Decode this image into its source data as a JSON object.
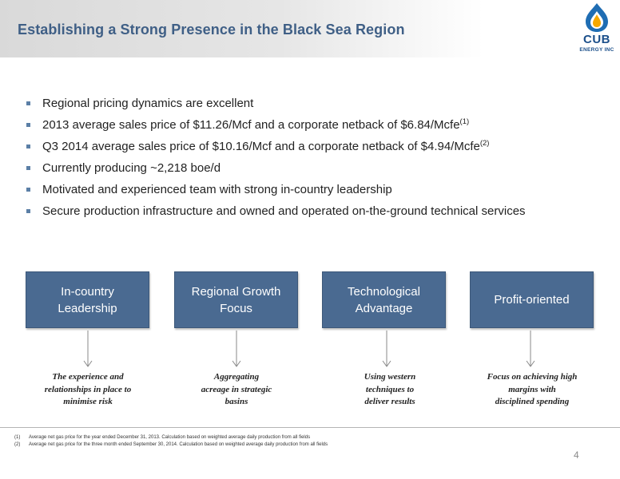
{
  "slide": {
    "title": "Establishing a Strong Presence in the Black Sea Region",
    "page_number": "4"
  },
  "logo": {
    "name": "CUB",
    "subtitle": "ENERGY INC",
    "colors": {
      "primary": "#1b4f8a",
      "flame": "#f5a800",
      "drop": "#1f6db3"
    }
  },
  "bullets": [
    {
      "text": "Regional pricing dynamics are excellent",
      "sup": ""
    },
    {
      "text": "2013 average sales price of $11.26/Mcf and a corporate netback of $6.84/Mcfe",
      "sup": "(1)"
    },
    {
      "text": "Q3 2014 average sales price of $10.16/Mcf and a corporate netback of $4.94/Mcfe",
      "sup": "(2)"
    },
    {
      "text": "Currently producing ~2,218 boe/d",
      "sup": ""
    },
    {
      "text": "Motivated and experienced team with strong in-country leadership",
      "sup": ""
    },
    {
      "text": "Secure production infrastructure and owned and operated on-the-ground technical services",
      "sup": ""
    }
  ],
  "pillars": [
    {
      "box_line1": "In-country",
      "box_line2": "Leadership",
      "caption_lines": [
        "The experience and",
        "relationships in place to",
        "minimise risk"
      ]
    },
    {
      "box_line1": "Regional Growth",
      "box_line2": "Focus",
      "caption_lines": [
        "Aggregating",
        "acreage in strategic",
        "basins"
      ]
    },
    {
      "box_line1": "Technological",
      "box_line2": "Advantage",
      "caption_lines": [
        "Using western",
        "techniques to",
        "deliver results"
      ]
    },
    {
      "box_line1": "Profit-oriented",
      "box_line2": "",
      "caption_lines": [
        "Focus on achieving high",
        "margins with",
        "disciplined spending"
      ]
    }
  ],
  "footnotes": [
    {
      "num": "(1)",
      "text": "Average net gas price for the year ended December 31, 2013. Calculation based on weighted average daily production from all fields"
    },
    {
      "num": "(2)",
      "text": "Average net gas price for the three month ended September 30, 2014. Calculation based on weighted average daily production from all fields"
    }
  ],
  "colors": {
    "title": "#3f5f86",
    "box_fill": "#4a6a91",
    "bullet_marker": "#5b7fa6"
  }
}
